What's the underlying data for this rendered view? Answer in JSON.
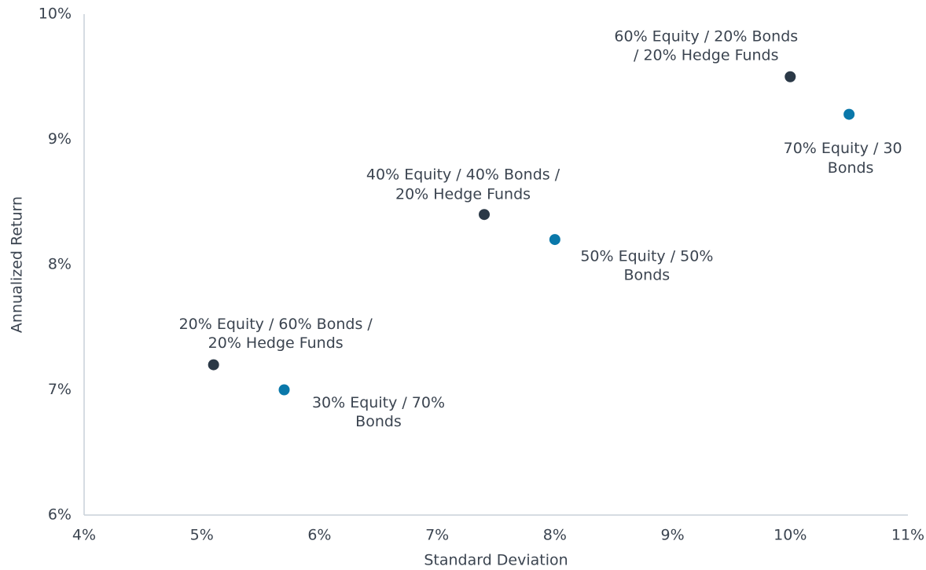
{
  "chart_data": {
    "type": "scatter",
    "xlabel": "Standard Deviation",
    "ylabel": "Annualized Return",
    "xlim": [
      4,
      11
    ],
    "ylim": [
      6,
      10
    ],
    "xticks": [
      {
        "value": 4,
        "label": "4%"
      },
      {
        "value": 5,
        "label": "5%"
      },
      {
        "value": 6,
        "label": "6%"
      },
      {
        "value": 7,
        "label": "7%"
      },
      {
        "value": 8,
        "label": "8%"
      },
      {
        "value": 9,
        "label": "9%"
      },
      {
        "value": 10,
        "label": "10%"
      },
      {
        "value": 11,
        "label": "11%"
      }
    ],
    "yticks": [
      {
        "value": 6,
        "label": "6%"
      },
      {
        "value": 7,
        "label": "7%"
      },
      {
        "value": 8,
        "label": "8%"
      },
      {
        "value": 9,
        "label": "9%"
      },
      {
        "value": 10,
        "label": "10%"
      }
    ],
    "grid": false,
    "series": [
      {
        "color": "#2b3947",
        "label_position": "above",
        "x": [
          5.1,
          7.4,
          10.0
        ],
        "values": [
          7.2,
          8.4,
          9.5
        ],
        "labels": [
          [
            "20% Equity / 60% Bonds /",
            "20% Hedge Funds"
          ],
          [
            "40% Equity / 40% Bonds /",
            "20% Hedge Funds"
          ],
          [
            "60% Equity / 20% Bonds",
            "/ 20% Hedge Funds"
          ]
        ]
      },
      {
        "color": "#0a78aa",
        "label_position": "below",
        "x": [
          5.7,
          8.0,
          10.5
        ],
        "values": [
          7.0,
          8.2,
          9.2
        ],
        "labels": [
          [
            "30% Equity / 70%",
            "Bonds"
          ],
          [
            "50% Equity / 50%",
            "Bonds"
          ],
          [
            "70% Equity / 30",
            "Bonds"
          ]
        ]
      }
    ]
  }
}
